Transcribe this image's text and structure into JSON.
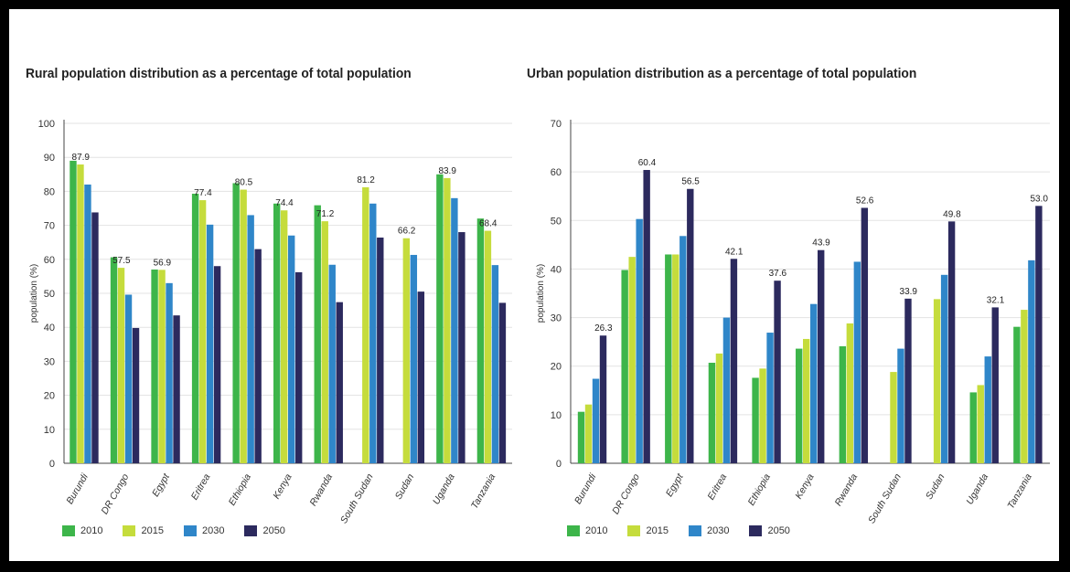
{
  "chart_data": [
    {
      "type": "bar",
      "title": "Rural population distribution as a percentage of total population",
      "ylabel": "population (%)",
      "xlabel": "",
      "ylim": [
        0,
        100
      ],
      "yticks": [
        0,
        10,
        20,
        30,
        40,
        50,
        60,
        70,
        80,
        90,
        100
      ],
      "grid": true,
      "legend_position": "bottom-left",
      "categories": [
        "Burundi",
        "DR Congo",
        "Egypt",
        "Eritrea",
        "Ethiopia",
        "Kenya",
        "Rwanda",
        "South Sudan",
        "Sudan",
        "Uganda",
        "Tanzania"
      ],
      "series": [
        {
          "name": "2010",
          "color": "#3db54a",
          "values": [
            89.0,
            60.6,
            57.0,
            79.3,
            82.4,
            76.4,
            75.9,
            null,
            null,
            85.0,
            72.0
          ]
        },
        {
          "name": "2015",
          "color": "#c5dc3c",
          "values": [
            87.9,
            57.5,
            56.9,
            77.4,
            80.5,
            74.4,
            71.2,
            81.2,
            66.2,
            83.9,
            68.4
          ]
        },
        {
          "name": "2030",
          "color": "#2f86c9",
          "values": [
            82.0,
            49.6,
            53.0,
            70.2,
            73.0,
            67.0,
            58.4,
            76.4,
            61.3,
            78.0,
            58.3
          ]
        },
        {
          "name": "2050",
          "color": "#2c2a5e",
          "values": [
            73.8,
            39.8,
            43.5,
            58.0,
            63.0,
            56.2,
            47.4,
            66.4,
            50.5,
            68.0,
            47.2
          ]
        }
      ],
      "data_labels": [
        {
          "category": "Burundi",
          "series": "2015",
          "text": "87.9"
        },
        {
          "category": "DR Congo",
          "series": "2015",
          "text": "57.5"
        },
        {
          "category": "Egypt",
          "series": "2015",
          "text": "56.9"
        },
        {
          "category": "Eritrea",
          "series": "2015",
          "text": "77.4"
        },
        {
          "category": "Ethiopia",
          "series": "2015",
          "text": "80.5"
        },
        {
          "category": "Kenya",
          "series": "2015",
          "text": "74.4"
        },
        {
          "category": "Rwanda",
          "series": "2015",
          "text": "71.2"
        },
        {
          "category": "South Sudan",
          "series": "2015",
          "text": "81.2"
        },
        {
          "category": "Sudan",
          "series": "2015",
          "text": "66.2"
        },
        {
          "category": "Uganda",
          "series": "2015",
          "text": "83.9"
        },
        {
          "category": "Tanzania",
          "series": "2015",
          "text": "68.4"
        }
      ]
    },
    {
      "type": "bar",
      "title": "Urban population distribution as a percentage of total population",
      "ylabel": "population (%)",
      "xlabel": "",
      "ylim": [
        0,
        70
      ],
      "yticks": [
        0,
        10,
        20,
        30,
        40,
        50,
        60,
        70
      ],
      "grid": true,
      "legend_position": "bottom-left",
      "categories": [
        "Burundi",
        "DR Congo",
        "Egypt",
        "Eritrea",
        "Ethiopia",
        "Kenya",
        "Rwanda",
        "South Sudan",
        "Sudan",
        "Uganda",
        "Tanzania"
      ],
      "series": [
        {
          "name": "2010",
          "color": "#3db54a",
          "values": [
            10.6,
            39.8,
            43.0,
            20.7,
            17.6,
            23.6,
            24.1,
            null,
            null,
            14.6,
            28.1
          ]
        },
        {
          "name": "2015",
          "color": "#c5dc3c",
          "values": [
            12.1,
            42.5,
            43.0,
            22.6,
            19.5,
            25.6,
            28.8,
            18.8,
            33.8,
            16.1,
            31.6
          ]
        },
        {
          "name": "2030",
          "color": "#2f86c9",
          "values": [
            17.4,
            50.3,
            46.8,
            30.0,
            26.9,
            32.8,
            41.5,
            23.6,
            38.8,
            22.0,
            41.8
          ]
        },
        {
          "name": "2050",
          "color": "#2c2a5e",
          "values": [
            26.3,
            60.4,
            56.5,
            42.1,
            37.6,
            43.9,
            52.6,
            33.9,
            49.8,
            32.1,
            53.0
          ]
        }
      ],
      "data_labels": [
        {
          "category": "Burundi",
          "series": "2050",
          "text": "26.3"
        },
        {
          "category": "DR Congo",
          "series": "2050",
          "text": "60.4"
        },
        {
          "category": "Egypt",
          "series": "2050",
          "text": "56.5"
        },
        {
          "category": "Eritrea",
          "series": "2050",
          "text": "42.1"
        },
        {
          "category": "Ethiopia",
          "series": "2050",
          "text": "37.6"
        },
        {
          "category": "Kenya",
          "series": "2050",
          "text": "43.9"
        },
        {
          "category": "Rwanda",
          "series": "2050",
          "text": "52.6"
        },
        {
          "category": "South Sudan",
          "series": "2050",
          "text": "33.9"
        },
        {
          "category": "Sudan",
          "series": "2050",
          "text": "49.8"
        },
        {
          "category": "Uganda",
          "series": "2050",
          "text": "32.1"
        },
        {
          "category": "Tanzania",
          "series": "2050",
          "text": "53.0"
        }
      ]
    }
  ]
}
